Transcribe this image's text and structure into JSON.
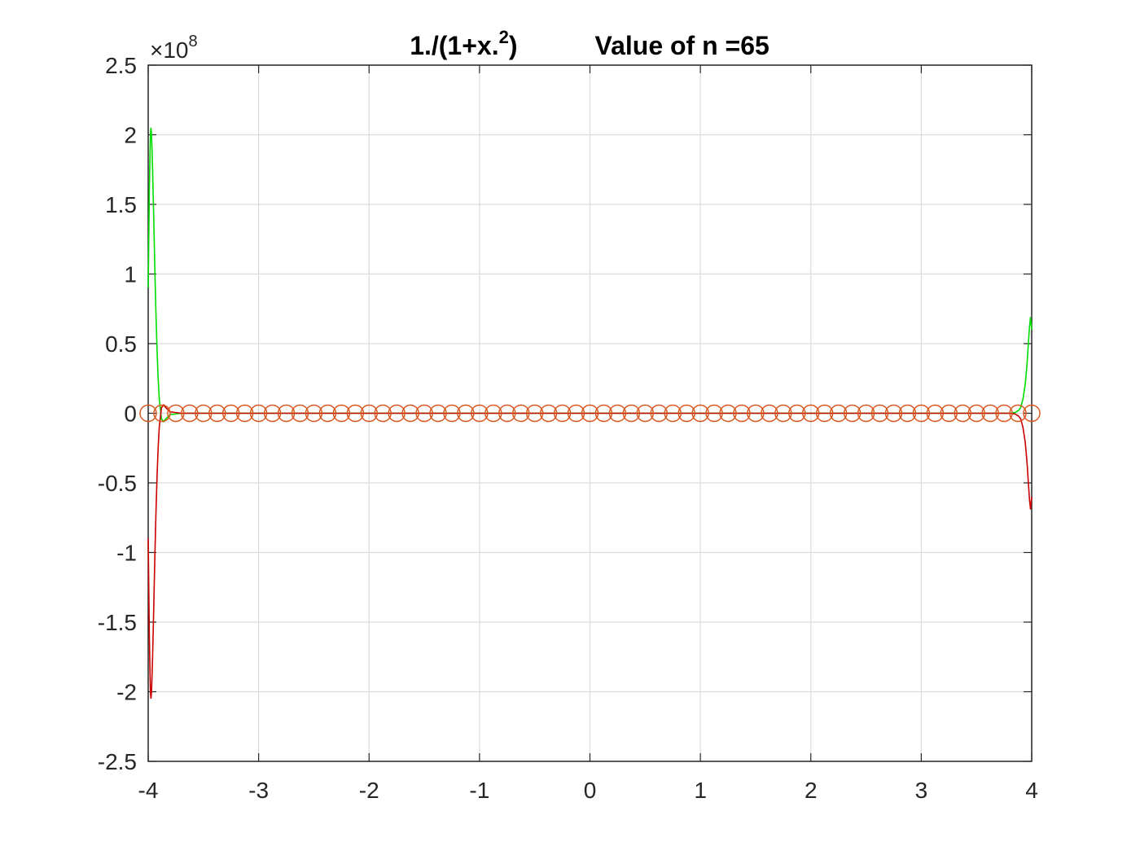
{
  "chart_data": {
    "type": "line",
    "title": "1./(1+x.²)",
    "title_function": "1./(1+x.",
    "title_superscript": "2",
    "title_close": ")",
    "title_suffix": "Value of n =65",
    "y_exponent_base": "10",
    "y_exponent_power": "8",
    "y_exponent_symbol": "×",
    "xlim": [
      -4,
      4
    ],
    "ylim": [
      -2.5,
      2.5
    ],
    "xticks": [
      -4,
      -3,
      -2,
      -1,
      0,
      1,
      2,
      3,
      4
    ],
    "xtick_labels": [
      "-4",
      "-3",
      "-2",
      "-1",
      "0",
      "1",
      "2",
      "3",
      "4"
    ],
    "yticks": [
      -2.5,
      -2,
      -1.5,
      -1,
      -0.5,
      0,
      0.5,
      1,
      1.5,
      2,
      2.5
    ],
    "ytick_labels": [
      "-2.5",
      "-2",
      "-1.5",
      "-1",
      "-0.5",
      "0",
      "0.5",
      "1",
      "1.5",
      "2",
      "2.5"
    ],
    "grid": true,
    "series": [
      {
        "color": "#00dd00",
        "style": "line",
        "x": [
          -4.0,
          -3.99,
          -3.98,
          -3.975,
          -3.97,
          -3.96,
          -3.95,
          -3.94,
          -3.93,
          -3.92,
          -3.91,
          -3.9,
          -3.88,
          -3.86,
          -3.84,
          -3.8,
          -3.7,
          -3.5,
          0,
          3.5,
          3.8,
          3.85,
          3.88,
          3.9,
          3.92,
          3.94,
          3.95,
          3.96,
          3.97,
          3.98,
          3.99,
          4.0
        ],
        "y": [
          0.9,
          1.6,
          2.0,
          2.05,
          2.0,
          1.75,
          1.4,
          1.05,
          0.72,
          0.45,
          0.25,
          0.1,
          -0.04,
          -0.06,
          -0.04,
          -0.01,
          0.0,
          0.0,
          0.0,
          0.0,
          0.0,
          0.005,
          0.02,
          0.04,
          0.1,
          0.2,
          0.28,
          0.38,
          0.5,
          0.62,
          0.69,
          0.6
        ]
      },
      {
        "color": "#cc0000",
        "style": "line",
        "x": [
          -4.0,
          -3.99,
          -3.98,
          -3.975,
          -3.97,
          -3.96,
          -3.95,
          -3.94,
          -3.93,
          -3.92,
          -3.91,
          -3.9,
          -3.88,
          -3.86,
          -3.84,
          -3.8,
          -3.7,
          -3.5,
          0,
          3.5,
          3.8,
          3.85,
          3.88,
          3.9,
          3.92,
          3.94,
          3.95,
          3.96,
          3.97,
          3.98,
          3.99,
          4.0
        ],
        "y": [
          -0.9,
          -1.6,
          -2.0,
          -2.05,
          -2.0,
          -1.75,
          -1.4,
          -1.05,
          -0.72,
          -0.45,
          -0.25,
          -0.1,
          0.04,
          0.06,
          0.04,
          0.01,
          0.0,
          0.0,
          0.0,
          0.0,
          0.0,
          -0.005,
          -0.02,
          -0.04,
          -0.1,
          -0.2,
          -0.28,
          -0.38,
          -0.5,
          -0.62,
          -0.69,
          -0.6
        ]
      },
      {
        "color": "#d95319",
        "style": "markers",
        "marker": "circle",
        "n": 65,
        "x_start": -4,
        "x_end": 4,
        "y_value": 0
      }
    ]
  }
}
